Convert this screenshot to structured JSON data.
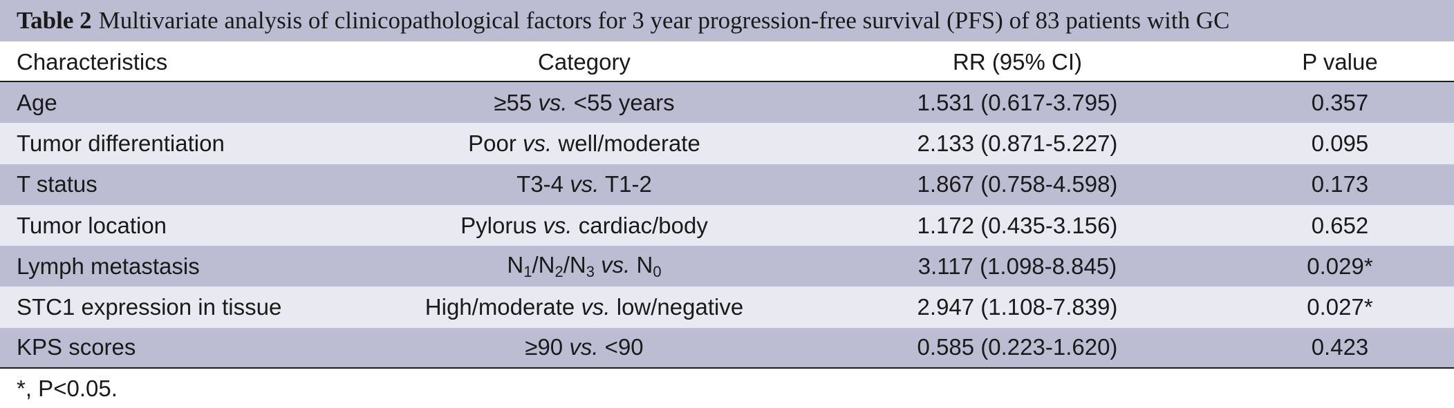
{
  "caption": {
    "label": "Table 2",
    "text": "Multivariate analysis of clinicopathological factors for 3 year progression-free survival (PFS) of 83 patients with GC"
  },
  "columns": [
    "Characteristics",
    "Category",
    "RR (95% CI)",
    "P value"
  ],
  "rows": [
    {
      "characteristic": "Age",
      "cat_a": "≥55",
      "vs": "vs.",
      "cat_b": "<55 years",
      "rr": "1.531 (0.617-3.795)",
      "p": "0.357"
    },
    {
      "characteristic": "Tumor differentiation",
      "cat_a": "Poor",
      "vs": "vs.",
      "cat_b": "well/moderate",
      "rr": "2.133 (0.871-5.227)",
      "p": "0.095"
    },
    {
      "characteristic": "T status",
      "cat_a": "T3-4",
      "vs": "vs.",
      "cat_b": "T1-2",
      "rr": "1.867 (0.758-4.598)",
      "p": "0.173"
    },
    {
      "characteristic": "Tumor location",
      "cat_a": "Pylorus",
      "vs": "vs.",
      "cat_b": "cardiac/body",
      "rr": "1.172 (0.435-3.156)",
      "p": "0.652"
    },
    {
      "characteristic": "Lymph metastasis",
      "cat_a": "N1/N2/N3",
      "vs": "vs.",
      "cat_b": "N0",
      "rr": "3.117 (1.098-8.845)",
      "p": "0.029*"
    },
    {
      "characteristic": "STC1 expression in tissue",
      "cat_a": "High/moderate",
      "vs": "vs.",
      "cat_b": "low/negative",
      "rr": "2.947 (1.108-7.839)",
      "p": "0.027*"
    },
    {
      "characteristic": "KPS scores",
      "cat_a": "≥90",
      "vs": "vs.",
      "cat_b": "<90",
      "rr": "0.585 (0.223-1.620)",
      "p": "0.423"
    }
  ],
  "lymph_parts": {
    "n": "N",
    "s1": "1",
    "s2": "2",
    "s3": "3",
    "s0": "0",
    "slash": "/"
  },
  "footnote": "*, P<0.05.",
  "colors": {
    "band_dark": "#bcbdd3",
    "band_light": "#e9e9f1",
    "rule": "#1a1a1a"
  }
}
